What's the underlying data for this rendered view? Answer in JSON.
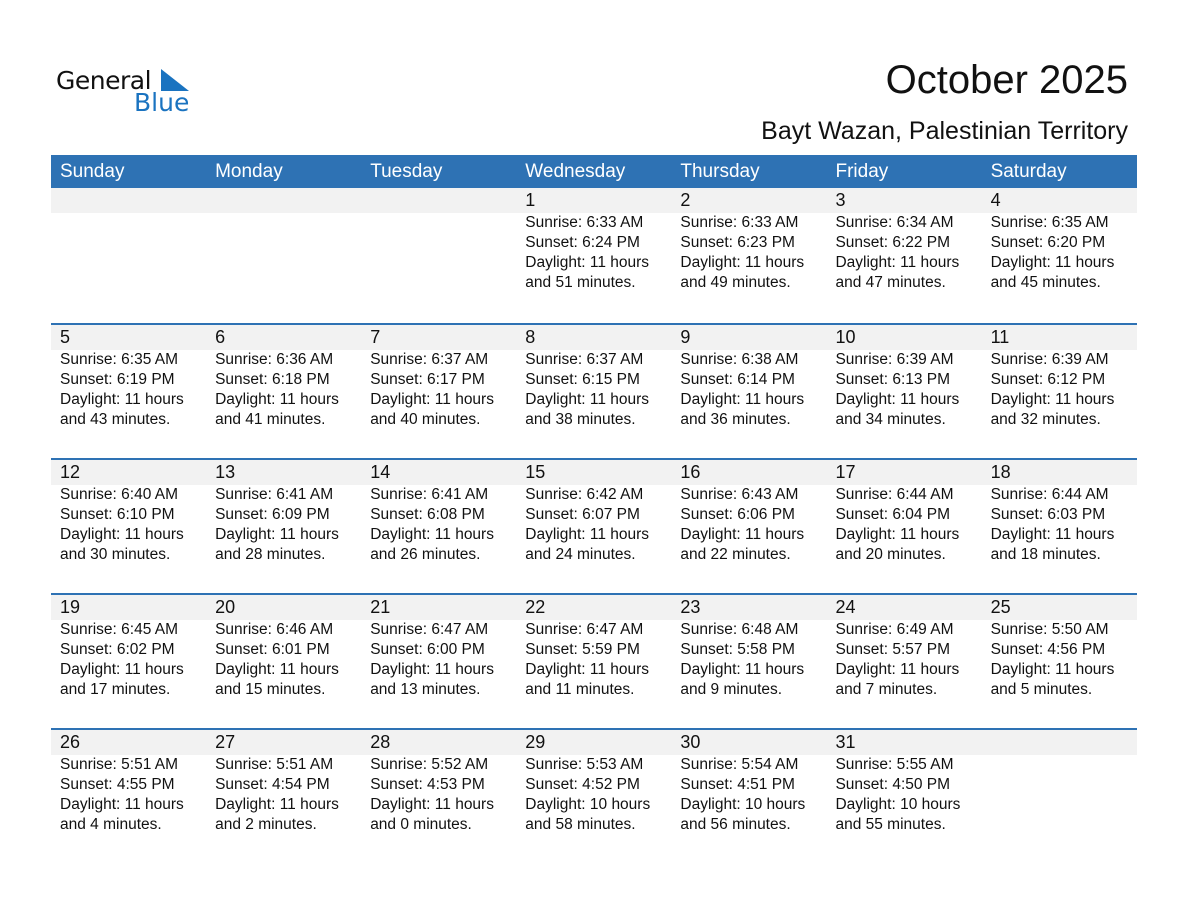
{
  "logo": {
    "text_general": "General",
    "text_blue": "Blue"
  },
  "header": {
    "title": "October 2025",
    "location": "Bayt Wazan, Palestinian Territory"
  },
  "weekdays": [
    "Sunday",
    "Monday",
    "Tuesday",
    "Wednesday",
    "Thursday",
    "Friday",
    "Saturday"
  ],
  "colors": {
    "header_bg": "#2e72b4",
    "date_band": "#f2f2f2",
    "logo_blue": "#1a73c0"
  },
  "weeks": [
    [
      null,
      null,
      null,
      {
        "day": "1",
        "sunrise": "Sunrise: 6:33 AM",
        "sunset": "Sunset: 6:24 PM",
        "daylight": "Daylight: 11 hours",
        "minutes": "and 51 minutes."
      },
      {
        "day": "2",
        "sunrise": "Sunrise: 6:33 AM",
        "sunset": "Sunset: 6:23 PM",
        "daylight": "Daylight: 11 hours",
        "minutes": "and 49 minutes."
      },
      {
        "day": "3",
        "sunrise": "Sunrise: 6:34 AM",
        "sunset": "Sunset: 6:22 PM",
        "daylight": "Daylight: 11 hours",
        "minutes": "and 47 minutes."
      },
      {
        "day": "4",
        "sunrise": "Sunrise: 6:35 AM",
        "sunset": "Sunset: 6:20 PM",
        "daylight": "Daylight: 11 hours",
        "minutes": "and 45 minutes."
      }
    ],
    [
      {
        "day": "5",
        "sunrise": "Sunrise: 6:35 AM",
        "sunset": "Sunset: 6:19 PM",
        "daylight": "Daylight: 11 hours",
        "minutes": "and 43 minutes."
      },
      {
        "day": "6",
        "sunrise": "Sunrise: 6:36 AM",
        "sunset": "Sunset: 6:18 PM",
        "daylight": "Daylight: 11 hours",
        "minutes": "and 41 minutes."
      },
      {
        "day": "7",
        "sunrise": "Sunrise: 6:37 AM",
        "sunset": "Sunset: 6:17 PM",
        "daylight": "Daylight: 11 hours",
        "minutes": "and 40 minutes."
      },
      {
        "day": "8",
        "sunrise": "Sunrise: 6:37 AM",
        "sunset": "Sunset: 6:15 PM",
        "daylight": "Daylight: 11 hours",
        "minutes": "and 38 minutes."
      },
      {
        "day": "9",
        "sunrise": "Sunrise: 6:38 AM",
        "sunset": "Sunset: 6:14 PM",
        "daylight": "Daylight: 11 hours",
        "minutes": "and 36 minutes."
      },
      {
        "day": "10",
        "sunrise": "Sunrise: 6:39 AM",
        "sunset": "Sunset: 6:13 PM",
        "daylight": "Daylight: 11 hours",
        "minutes": "and 34 minutes."
      },
      {
        "day": "11",
        "sunrise": "Sunrise: 6:39 AM",
        "sunset": "Sunset: 6:12 PM",
        "daylight": "Daylight: 11 hours",
        "minutes": "and 32 minutes."
      }
    ],
    [
      {
        "day": "12",
        "sunrise": "Sunrise: 6:40 AM",
        "sunset": "Sunset: 6:10 PM",
        "daylight": "Daylight: 11 hours",
        "minutes": "and 30 minutes."
      },
      {
        "day": "13",
        "sunrise": "Sunrise: 6:41 AM",
        "sunset": "Sunset: 6:09 PM",
        "daylight": "Daylight: 11 hours",
        "minutes": "and 28 minutes."
      },
      {
        "day": "14",
        "sunrise": "Sunrise: 6:41 AM",
        "sunset": "Sunset: 6:08 PM",
        "daylight": "Daylight: 11 hours",
        "minutes": "and 26 minutes."
      },
      {
        "day": "15",
        "sunrise": "Sunrise: 6:42 AM",
        "sunset": "Sunset: 6:07 PM",
        "daylight": "Daylight: 11 hours",
        "minutes": "and 24 minutes."
      },
      {
        "day": "16",
        "sunrise": "Sunrise: 6:43 AM",
        "sunset": "Sunset: 6:06 PM",
        "daylight": "Daylight: 11 hours",
        "minutes": "and 22 minutes."
      },
      {
        "day": "17",
        "sunrise": "Sunrise: 6:44 AM",
        "sunset": "Sunset: 6:04 PM",
        "daylight": "Daylight: 11 hours",
        "minutes": "and 20 minutes."
      },
      {
        "day": "18",
        "sunrise": "Sunrise: 6:44 AM",
        "sunset": "Sunset: 6:03 PM",
        "daylight": "Daylight: 11 hours",
        "minutes": "and 18 minutes."
      }
    ],
    [
      {
        "day": "19",
        "sunrise": "Sunrise: 6:45 AM",
        "sunset": "Sunset: 6:02 PM",
        "daylight": "Daylight: 11 hours",
        "minutes": "and 17 minutes."
      },
      {
        "day": "20",
        "sunrise": "Sunrise: 6:46 AM",
        "sunset": "Sunset: 6:01 PM",
        "daylight": "Daylight: 11 hours",
        "minutes": "and 15 minutes."
      },
      {
        "day": "21",
        "sunrise": "Sunrise: 6:47 AM",
        "sunset": "Sunset: 6:00 PM",
        "daylight": "Daylight: 11 hours",
        "minutes": "and 13 minutes."
      },
      {
        "day": "22",
        "sunrise": "Sunrise: 6:47 AM",
        "sunset": "Sunset: 5:59 PM",
        "daylight": "Daylight: 11 hours",
        "minutes": "and 11 minutes."
      },
      {
        "day": "23",
        "sunrise": "Sunrise: 6:48 AM",
        "sunset": "Sunset: 5:58 PM",
        "daylight": "Daylight: 11 hours",
        "minutes": "and 9 minutes."
      },
      {
        "day": "24",
        "sunrise": "Sunrise: 6:49 AM",
        "sunset": "Sunset: 5:57 PM",
        "daylight": "Daylight: 11 hours",
        "minutes": "and 7 minutes."
      },
      {
        "day": "25",
        "sunrise": "Sunrise: 5:50 AM",
        "sunset": "Sunset: 4:56 PM",
        "daylight": "Daylight: 11 hours",
        "minutes": "and 5 minutes."
      }
    ],
    [
      {
        "day": "26",
        "sunrise": "Sunrise: 5:51 AM",
        "sunset": "Sunset: 4:55 PM",
        "daylight": "Daylight: 11 hours",
        "minutes": "and 4 minutes."
      },
      {
        "day": "27",
        "sunrise": "Sunrise: 5:51 AM",
        "sunset": "Sunset: 4:54 PM",
        "daylight": "Daylight: 11 hours",
        "minutes": "and 2 minutes."
      },
      {
        "day": "28",
        "sunrise": "Sunrise: 5:52 AM",
        "sunset": "Sunset: 4:53 PM",
        "daylight": "Daylight: 11 hours",
        "minutes": "and 0 minutes."
      },
      {
        "day": "29",
        "sunrise": "Sunrise: 5:53 AM",
        "sunset": "Sunset: 4:52 PM",
        "daylight": "Daylight: 10 hours",
        "minutes": "and 58 minutes."
      },
      {
        "day": "30",
        "sunrise": "Sunrise: 5:54 AM",
        "sunset": "Sunset: 4:51 PM",
        "daylight": "Daylight: 10 hours",
        "minutes": "and 56 minutes."
      },
      {
        "day": "31",
        "sunrise": "Sunrise: 5:55 AM",
        "sunset": "Sunset: 4:50 PM",
        "daylight": "Daylight: 10 hours",
        "minutes": "and 55 minutes."
      },
      null
    ]
  ]
}
